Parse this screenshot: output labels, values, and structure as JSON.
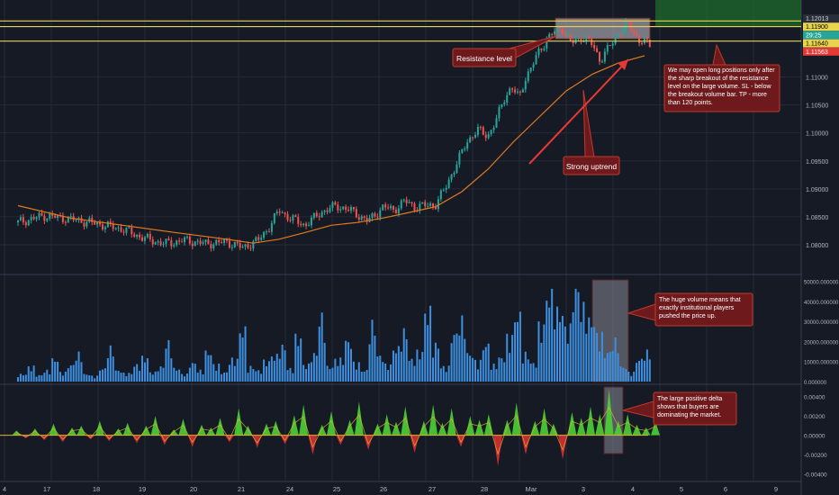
{
  "colors": {
    "background": "#161a25",
    "grid": "#242938",
    "up": "#26a69a",
    "down": "#ef5350",
    "ma": "#e07b1f",
    "resistance": "#e8d44d",
    "volume": "#3d8fe0",
    "delta_pos": "#4cd137",
    "delta_neg": "#d63031",
    "delta_line": "#e1b12c",
    "annotation_fill": "#6e1a1d",
    "annotation_border": "#c0392b",
    "highlight": "#c8c8d0",
    "tp_zone": "#1e6b2e"
  },
  "chart_data": [
    {
      "type": "candlestick",
      "title": "",
      "x_tick_labels": [
        "4",
        "17",
        "18",
        "19",
        "20",
        "21",
        "24",
        "25",
        "26",
        "27",
        "28",
        "Mar",
        "3",
        "4",
        "5",
        "6",
        "9"
      ],
      "ylim": [
        1.0755,
        1.1215
      ],
      "y_tick_labels": [
        "1.12013",
        "1.11900",
        "29:25",
        "1.11640",
        "1.11563",
        "1.11000",
        "1.10500",
        "1.10000",
        "1.09500",
        "1.09000",
        "1.08500",
        "1.08000"
      ],
      "price_tags": [
        {
          "label": "1.12013",
          "value": 1.12,
          "style": "dark"
        },
        {
          "label": "1.11900",
          "value": 1.119,
          "style": "yellow"
        },
        {
          "label": "29:25",
          "value": 1.1175,
          "style": "teal"
        },
        {
          "label": "1.11640",
          "value": 1.1164,
          "style": "yellow"
        },
        {
          "label": "1.11563",
          "value": 1.1156,
          "style": "red"
        }
      ],
      "resistance_levels": [
        1.12,
        1.119,
        1.1164
      ],
      "close_path": [
        [
          0,
          1.084
        ],
        [
          0.05,
          1.0852
        ],
        [
          0.1,
          1.0846
        ],
        [
          0.15,
          1.0838
        ],
        [
          0.2,
          1.0828
        ],
        [
          0.24,
          1.0812
        ],
        [
          0.28,
          1.0802
        ],
        [
          0.32,
          1.0808
        ],
        [
          0.36,
          1.0802
        ],
        [
          0.4,
          1.0805
        ],
        [
          0.43,
          1.0795
        ],
        [
          0.46,
          1.0808
        ],
        [
          0.48,
          1.083
        ],
        [
          0.5,
          1.0862
        ],
        [
          0.52,
          1.0848
        ],
        [
          0.55,
          1.0835
        ],
        [
          0.58,
          1.0858
        ],
        [
          0.61,
          1.087
        ],
        [
          0.64,
          1.086
        ],
        [
          0.67,
          1.0842
        ],
        [
          0.7,
          1.0868
        ],
        [
          0.72,
          1.0862
        ],
        [
          0.74,
          1.0878
        ],
        [
          0.76,
          1.0868
        ],
        [
          0.78,
          1.087
        ],
        [
          0.8,
          1.0872
        ],
        [
          0.82,
          1.0905
        ],
        [
          0.84,
          1.0945
        ],
        [
          0.86,
          1.0985
        ],
        [
          0.88,
          1.1005
        ],
        [
          0.9,
          1.0995
        ],
        [
          0.915,
          1.102
        ],
        [
          0.93,
          1.106
        ],
        [
          0.945,
          1.1082
        ],
        [
          0.96,
          1.1062
        ],
        [
          0.97,
          1.1095
        ],
        [
          0.985,
          1.112
        ],
        [
          1.0,
          1.115
        ],
        [
          1.02,
          1.1175
        ],
        [
          1.04,
          1.119
        ],
        [
          1.06,
          1.116
        ],
        [
          1.08,
          1.1172
        ],
        [
          1.1,
          1.1158
        ],
        [
          1.115,
          1.113
        ],
        [
          1.13,
          1.115
        ],
        [
          1.15,
          1.1178
        ],
        [
          1.17,
          1.1195
        ],
        [
          1.19,
          1.1165
        ],
        [
          1.21,
          1.1158
        ]
      ],
      "moving_average": [
        [
          0,
          1.087
        ],
        [
          0.1,
          1.0848
        ],
        [
          0.2,
          1.0835
        ],
        [
          0.3,
          1.0822
        ],
        [
          0.4,
          1.081
        ],
        [
          0.45,
          1.0803
        ],
        [
          0.5,
          1.081
        ],
        [
          0.55,
          1.0822
        ],
        [
          0.6,
          1.0835
        ],
        [
          0.65,
          1.084
        ],
        [
          0.7,
          1.0848
        ],
        [
          0.75,
          1.0858
        ],
        [
          0.8,
          1.0868
        ],
        [
          0.85,
          1.0895
        ],
        [
          0.9,
          1.0935
        ],
        [
          0.95,
          1.0985
        ],
        [
          1.0,
          1.103
        ],
        [
          1.05,
          1.1075
        ],
        [
          1.1,
          1.1105
        ],
        [
          1.15,
          1.1125
        ],
        [
          1.2,
          1.1138
        ]
      ],
      "annotations": [
        {
          "text": "Resistance level"
        },
        {
          "text": "Strong uptrend"
        },
        {
          "text": "We may open long positions only after the sharp breakout of the resistance level on the large volume. SL - below the breakout volume bar. TP - more than 120 points."
        }
      ]
    },
    {
      "type": "bar",
      "title": "",
      "ylim": [
        0,
        52000
      ],
      "y_tick_labels": [
        "50000.000000",
        "40000.000000",
        "30000.000000",
        "20000.000000",
        "10000.000000",
        "0.000000"
      ],
      "values_pattern": [
        4000,
        8000,
        3500,
        6000,
        12000,
        5000,
        9000,
        15000,
        4000,
        3000,
        7000,
        18000,
        6000,
        4500,
        9000,
        13000,
        5000,
        8000,
        21000,
        7000,
        4000,
        10000,
        6000,
        16000,
        9000,
        5000,
        12000,
        28000,
        8000,
        6000,
        11000,
        14000,
        19000,
        7000,
        24000,
        9000,
        15000,
        35000,
        8000,
        12000,
        22000,
        10000,
        6000,
        31000,
        14000,
        9000,
        18000,
        27000,
        12000,
        16000,
        38000,
        20000,
        8000,
        26000,
        33000,
        15000,
        11000,
        20000,
        9000,
        13000,
        24000,
        36000,
        15000,
        10000,
        30000,
        47000,
        38000,
        29000,
        50000,
        40000,
        33000,
        25000,
        16000,
        22000,
        8000,
        5000,
        12000,
        16000
      ],
      "annotation": "The huge volume means that exactly institutional players pushed the price up."
    },
    {
      "type": "area",
      "title": "",
      "ylim": [
        -0.0045,
        0.005
      ],
      "y_tick_labels": [
        "0.00400",
        "0.00200",
        "0.00000",
        "-0.00200",
        "-0.00400"
      ],
      "spikes": [
        [
          0.2,
          0.0005
        ],
        [
          0.4,
          -0.0003
        ],
        [
          0.6,
          0.0007
        ],
        [
          0.8,
          -0.0005
        ],
        [
          1.0,
          0.0012
        ],
        [
          1.2,
          -0.0007
        ],
        [
          1.4,
          0.0008
        ],
        [
          1.6,
          0.001
        ],
        [
          1.8,
          -0.0004
        ],
        [
          2.0,
          0.0015
        ],
        [
          2.2,
          -0.0006
        ],
        [
          2.4,
          0.0007
        ],
        [
          2.6,
          0.0013
        ],
        [
          2.8,
          -0.0008
        ],
        [
          3.0,
          0.001
        ],
        [
          3.2,
          0.002
        ],
        [
          3.4,
          -0.001
        ],
        [
          3.6,
          0.0006
        ],
        [
          3.8,
          0.0017
        ],
        [
          4.0,
          -0.0012
        ],
        [
          4.2,
          0.0011
        ],
        [
          4.4,
          0.0008
        ],
        [
          4.6,
          0.0018
        ],
        [
          4.8,
          -0.0007
        ],
        [
          5.0,
          0.0028
        ],
        [
          5.2,
          0.001
        ],
        [
          5.4,
          -0.0013
        ],
        [
          5.6,
          0.0012
        ],
        [
          5.8,
          0.0015
        ],
        [
          6.0,
          -0.0009
        ],
        [
          6.2,
          0.0021
        ],
        [
          6.4,
          0.0032
        ],
        [
          6.6,
          -0.002
        ],
        [
          6.8,
          0.0011
        ],
        [
          7.0,
          0.0025
        ],
        [
          7.2,
          -0.001
        ],
        [
          7.4,
          0.0016
        ],
        [
          7.6,
          0.0035
        ],
        [
          7.8,
          -0.0015
        ],
        [
          8.0,
          0.0012
        ],
        [
          8.2,
          0.0022
        ],
        [
          8.4,
          0.0014
        ],
        [
          8.6,
          0.003
        ],
        [
          8.8,
          -0.0018
        ],
        [
          9.0,
          0.0015
        ],
        [
          9.2,
          0.0032
        ],
        [
          9.4,
          0.0013
        ],
        [
          9.6,
          0.0028
        ],
        [
          9.8,
          -0.0012
        ],
        [
          10.0,
          0.002
        ],
        [
          10.2,
          0.0016
        ],
        [
          10.4,
          0.0022
        ],
        [
          10.6,
          -0.0032
        ],
        [
          10.8,
          0.0016
        ],
        [
          11.0,
          0.0034
        ],
        [
          11.2,
          -0.002
        ],
        [
          11.4,
          0.0015
        ],
        [
          11.6,
          0.0028
        ],
        [
          11.8,
          0.0012
        ],
        [
          12.0,
          -0.0025
        ],
        [
          12.2,
          0.0024
        ],
        [
          12.4,
          0.0018
        ],
        [
          12.6,
          0.003
        ],
        [
          12.8,
          0.0022
        ],
        [
          13.0,
          0.0048
        ],
        [
          13.2,
          0.0015
        ],
        [
          13.4,
          0.0022
        ],
        [
          13.6,
          0.0011
        ],
        [
          13.8,
          0.0008
        ],
        [
          14.0,
          0.0015
        ]
      ],
      "annotation": "The large positive delta shows that buyers are dominating the market."
    }
  ]
}
